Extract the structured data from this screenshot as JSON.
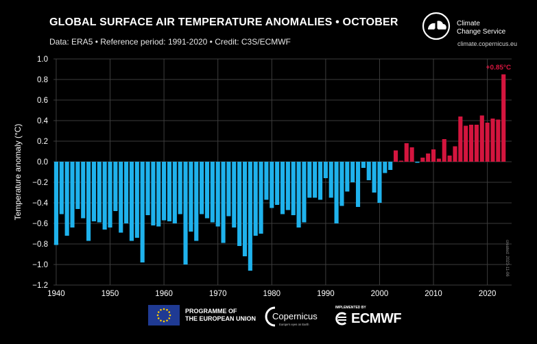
{
  "header": {
    "title": "GLOBAL SURFACE AIR TEMPERATURE ANOMALIES • OCTOBER",
    "subtitle": "Data: ERA5 • Reference period: 1991-2020 • Credit: C3S/ECMWF"
  },
  "branding": {
    "c3s_name_line1": "Climate",
    "c3s_name_line2": "Change Service",
    "c3s_url": "climate.copernicus.eu",
    "created": "created: 2023-11-06",
    "eu_line1": "PROGRAMME OF",
    "eu_line2": "THE EUROPEAN UNION",
    "copernicus_name": "Copernicus",
    "copernicus_tagline": "Europe's eyes on Earth",
    "ecmwf_implemented": "IMPLEMENTED BY",
    "ecmwf_name": "ECMWF"
  },
  "colors": {
    "positive": "#d4153e",
    "negative": "#1fb2ec",
    "background": "#000000",
    "grid": "#3d3d3d",
    "eu_flag": "#1f3a93",
    "eu_stars": "#ffcc00"
  },
  "chart_data": {
    "type": "bar",
    "title": "GLOBAL SURFACE AIR TEMPERATURE ANOMALIES • OCTOBER",
    "xlabel": "",
    "ylabel": "Temperature anomaly (°C)",
    "ylim": [
      -1.2,
      1.0
    ],
    "xlim": [
      1939.5,
      2024.5
    ],
    "yticks": [
      "1.0",
      "0.8",
      "0.6",
      "0.4",
      "0.2",
      "0.0",
      "−0.2",
      "−0.4",
      "−0.6",
      "−0.8",
      "−1.0",
      "−1.2"
    ],
    "ytick_values": [
      1.0,
      0.8,
      0.6,
      0.4,
      0.2,
      0.0,
      -0.2,
      -0.4,
      -0.6,
      -0.8,
      -1.0,
      -1.2
    ],
    "xticks": [
      "1940",
      "1950",
      "1960",
      "1970",
      "1980",
      "1990",
      "2000",
      "2010",
      "2020"
    ],
    "xtick_values": [
      1940,
      1950,
      1960,
      1970,
      1980,
      1990,
      2000,
      2010,
      2020
    ],
    "grid": true,
    "annotation": {
      "year": 2023,
      "text": "+0.85°C"
    },
    "years": [
      1940,
      1941,
      1942,
      1943,
      1944,
      1945,
      1946,
      1947,
      1948,
      1949,
      1950,
      1951,
      1952,
      1953,
      1954,
      1955,
      1956,
      1957,
      1958,
      1959,
      1960,
      1961,
      1962,
      1963,
      1964,
      1965,
      1966,
      1967,
      1968,
      1969,
      1970,
      1971,
      1972,
      1973,
      1974,
      1975,
      1976,
      1977,
      1978,
      1979,
      1980,
      1981,
      1982,
      1983,
      1984,
      1985,
      1986,
      1987,
      1988,
      1989,
      1990,
      1991,
      1992,
      1993,
      1994,
      1995,
      1996,
      1997,
      1998,
      1999,
      2000,
      2001,
      2002,
      2003,
      2004,
      2005,
      2006,
      2007,
      2008,
      2009,
      2010,
      2011,
      2012,
      2013,
      2014,
      2015,
      2016,
      2017,
      2018,
      2019,
      2020,
      2021,
      2022,
      2023
    ],
    "values": [
      -0.81,
      -0.51,
      -0.72,
      -0.64,
      -0.46,
      -0.55,
      -0.77,
      -0.58,
      -0.59,
      -0.66,
      -0.64,
      -0.48,
      -0.69,
      -0.6,
      -0.77,
      -0.74,
      -0.98,
      -0.52,
      -0.62,
      -0.63,
      -0.57,
      -0.58,
      -0.6,
      -0.51,
      -1.0,
      -0.68,
      -0.77,
      -0.51,
      -0.55,
      -0.59,
      -0.63,
      -0.79,
      -0.53,
      -0.64,
      -0.82,
      -0.92,
      -1.06,
      -0.72,
      -0.7,
      -0.37,
      -0.45,
      -0.42,
      -0.51,
      -0.47,
      -0.52,
      -0.64,
      -0.59,
      -0.35,
      -0.35,
      -0.37,
      -0.16,
      -0.35,
      -0.6,
      -0.43,
      -0.29,
      -0.2,
      -0.44,
      -0.06,
      -0.18,
      -0.3,
      -0.4,
      -0.11,
      -0.08,
      0.11,
      0.01,
      0.18,
      0.14,
      -0.01,
      0.04,
      0.08,
      0.12,
      0.03,
      0.22,
      0.06,
      0.15,
      0.44,
      0.35,
      0.36,
      0.36,
      0.45,
      0.38,
      0.42,
      0.41,
      0.85
    ]
  }
}
